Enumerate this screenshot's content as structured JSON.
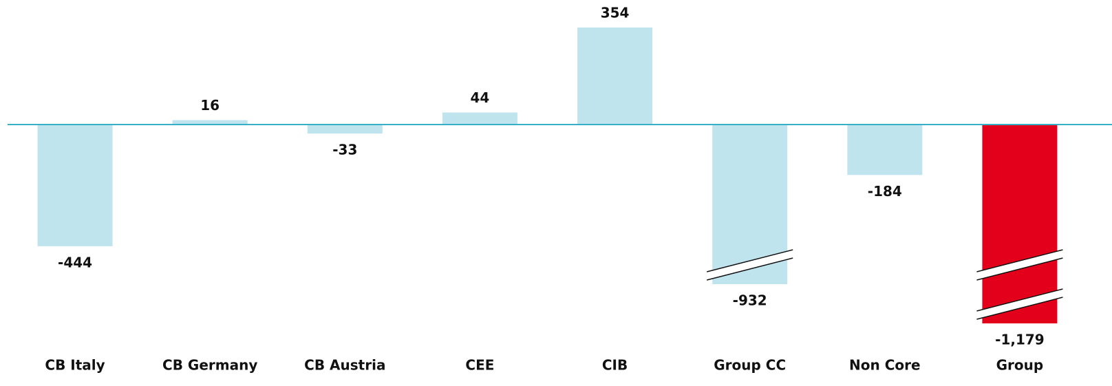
{
  "chart_data": {
    "type": "bar",
    "categories": [
      "CB Italy",
      "CB Germany",
      "CB Austria",
      "CEE",
      "CIB",
      "Group CC",
      "Non Core",
      "Group"
    ],
    "values": [
      -444,
      16,
      -33,
      44,
      354,
      -932,
      -184,
      -1179
    ],
    "value_labels": [
      "-444",
      "16",
      "-33",
      "44",
      "354",
      "-932",
      "-184",
      "-1,179"
    ],
    "colors": [
      "#c0e4ee",
      "#c0e4ee",
      "#c0e4ee",
      "#c0e4ee",
      "#c0e4ee",
      "#c0e4ee",
      "#c0e4ee",
      "#e2001a"
    ],
    "axis_color": "#35b0c6"
  }
}
